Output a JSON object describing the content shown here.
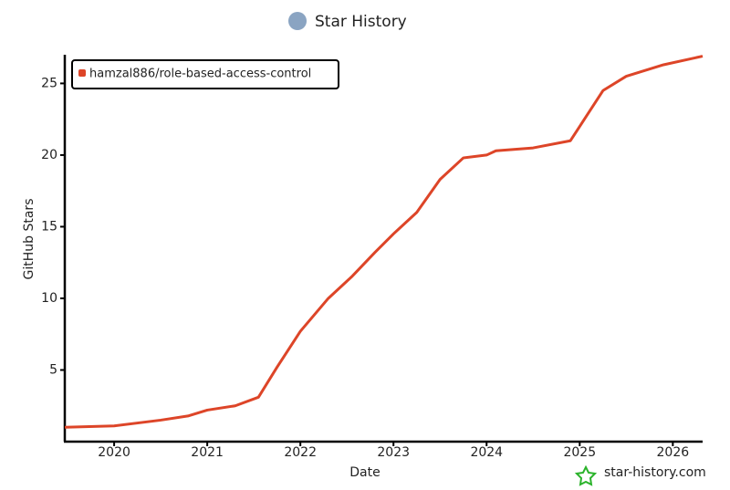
{
  "chart_data": {
    "type": "line",
    "title": "Star History",
    "x_label": "Date",
    "y_label": "GitHub Stars",
    "x": [
      2019.47,
      2020.0,
      2020.5,
      2020.8,
      2021.0,
      2021.3,
      2021.55,
      2021.75,
      2022.0,
      2022.3,
      2022.55,
      2022.8,
      2023.0,
      2023.25,
      2023.5,
      2023.75,
      2024.0,
      2024.1,
      2024.5,
      2024.9,
      2025.0,
      2025.25,
      2025.5,
      2025.9,
      2026.32
    ],
    "series": [
      {
        "name": "hamzal886/role-based-access-control",
        "color": "#dd4528",
        "values": [
          1,
          1.1,
          1.5,
          1.8,
          2.2,
          2.5,
          3.1,
          5.2,
          7.7,
          10,
          11.5,
          13.2,
          14.5,
          16,
          18.3,
          19.8,
          20,
          20.3,
          20.5,
          21,
          22,
          24.5,
          25.5,
          26.3,
          26.9
        ]
      }
    ],
    "xlim": [
      2019.47,
      2026.32
    ],
    "xticks": [
      2020,
      2021,
      2022,
      2023,
      2024,
      2025,
      2026
    ],
    "ylim": [
      0,
      27
    ],
    "yticks": [
      5,
      10,
      15,
      20,
      25
    ],
    "legend": "upper-left",
    "watermark": "star-history.com"
  }
}
